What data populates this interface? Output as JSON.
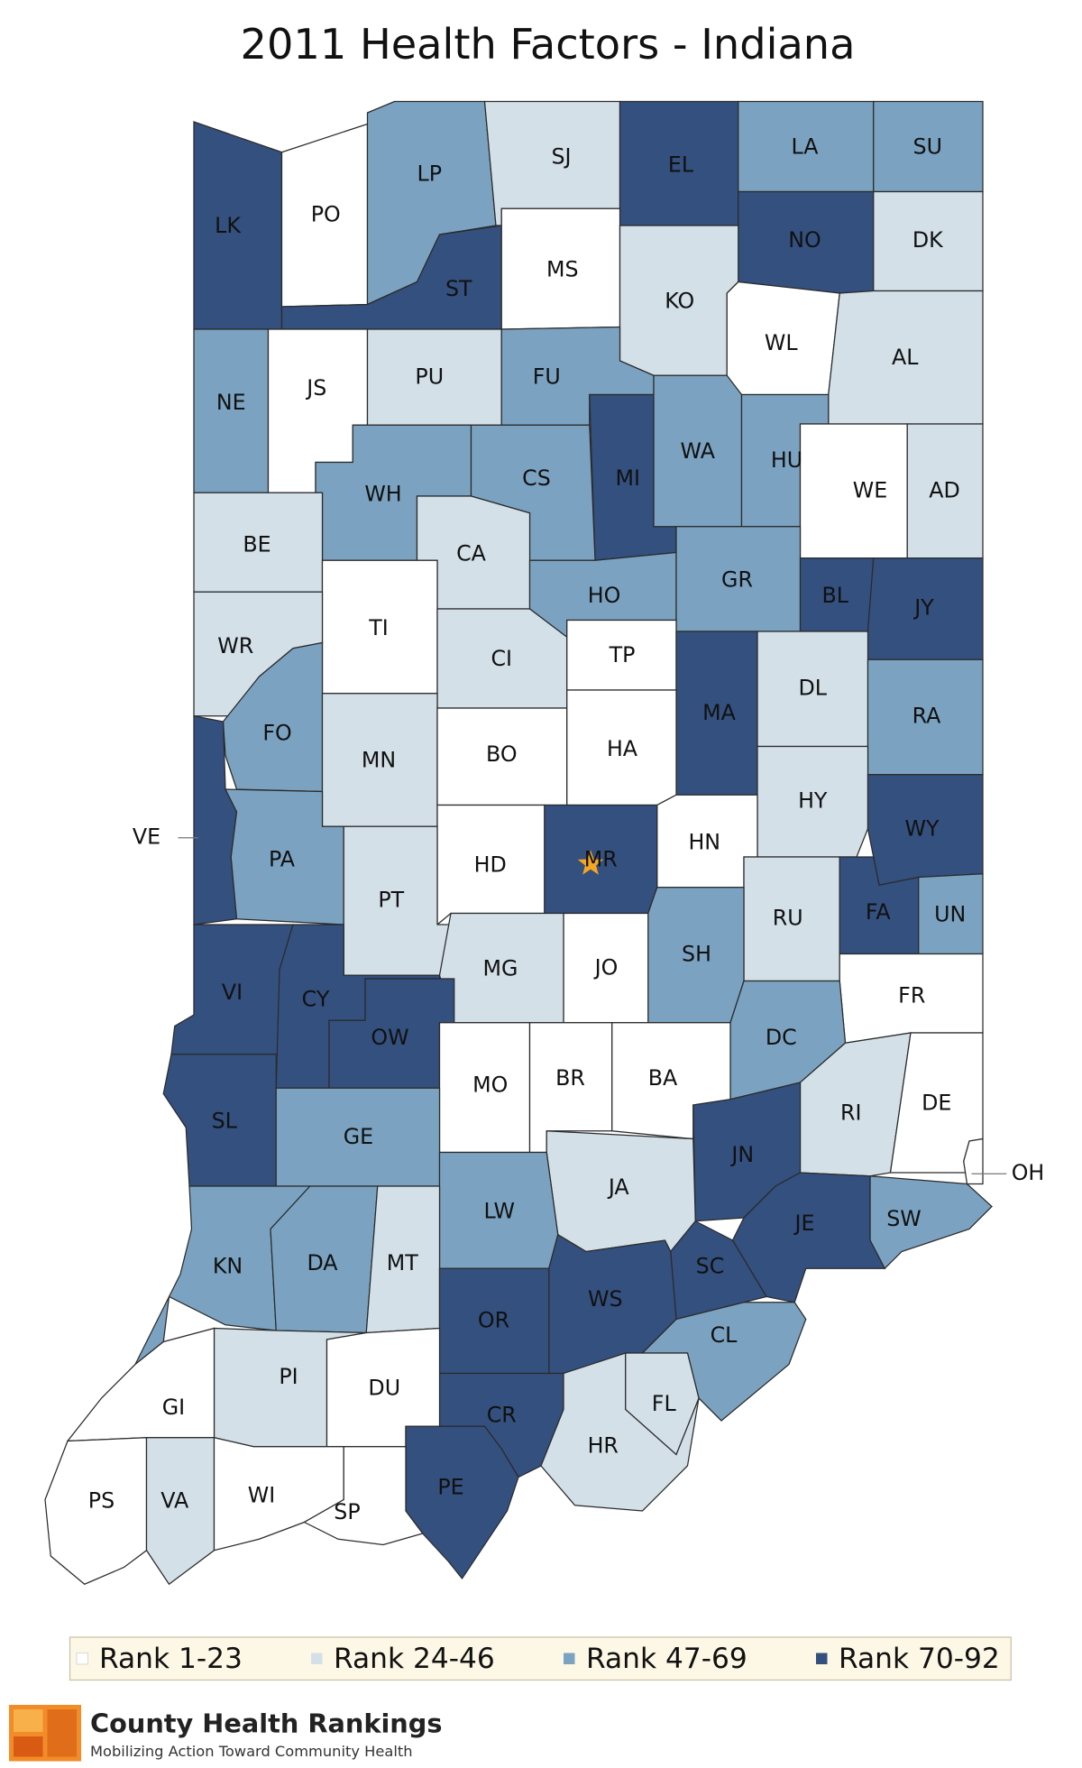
{
  "title": "2011 Health Factors - Indiana",
  "legend": {
    "items": [
      {
        "label": "Rank 1-23",
        "color": "#ffffff"
      },
      {
        "label": "Rank 24-46",
        "color": "#d3e0e8"
      },
      {
        "label": "Rank 47-69",
        "color": "#7ba3c1"
      },
      {
        "label": "Rank 70-92",
        "color": "#34507f"
      }
    ]
  },
  "counties": [
    {
      "abbr": "LK",
      "group": 3
    },
    {
      "abbr": "PO",
      "group": 0
    },
    {
      "abbr": "LP",
      "group": 2
    },
    {
      "abbr": "SJ",
      "group": 1
    },
    {
      "abbr": "EL",
      "group": 3
    },
    {
      "abbr": "LA",
      "group": 2
    },
    {
      "abbr": "SU",
      "group": 2
    },
    {
      "abbr": "ST",
      "group": 3
    },
    {
      "abbr": "MS",
      "group": 0
    },
    {
      "abbr": "NO",
      "group": 3
    },
    {
      "abbr": "DK",
      "group": 1
    },
    {
      "abbr": "KO",
      "group": 1
    },
    {
      "abbr": "WL",
      "group": 0
    },
    {
      "abbr": "AL",
      "group": 1
    },
    {
      "abbr": "NE",
      "group": 2
    },
    {
      "abbr": "JS",
      "group": 0
    },
    {
      "abbr": "PU",
      "group": 1
    },
    {
      "abbr": "FU",
      "group": 2
    },
    {
      "abbr": "MI",
      "group": 3
    },
    {
      "abbr": "WA",
      "group": 2
    },
    {
      "abbr": "HU",
      "group": 2
    },
    {
      "abbr": "WE",
      "group": 0
    },
    {
      "abbr": "AD",
      "group": 1
    },
    {
      "abbr": "WH",
      "group": 2
    },
    {
      "abbr": "CS",
      "group": 2
    },
    {
      "abbr": "CA",
      "group": 1
    },
    {
      "abbr": "BE",
      "group": 1
    },
    {
      "abbr": "HO",
      "group": 2
    },
    {
      "abbr": "GR",
      "group": 2
    },
    {
      "abbr": "BL",
      "group": 3
    },
    {
      "abbr": "JY",
      "group": 3
    },
    {
      "abbr": "TI",
      "group": 0
    },
    {
      "abbr": "WR",
      "group": 1
    },
    {
      "abbr": "CI",
      "group": 1
    },
    {
      "abbr": "TP",
      "group": 0
    },
    {
      "abbr": "MA",
      "group": 3
    },
    {
      "abbr": "DL",
      "group": 1
    },
    {
      "abbr": "RA",
      "group": 2
    },
    {
      "abbr": "FO",
      "group": 2
    },
    {
      "abbr": "MN",
      "group": 1
    },
    {
      "abbr": "BO",
      "group": 0
    },
    {
      "abbr": "HA",
      "group": 0
    },
    {
      "abbr": "HY",
      "group": 1
    },
    {
      "abbr": "HN",
      "group": 0
    },
    {
      "abbr": "MR",
      "group": 3
    },
    {
      "abbr": "HD",
      "group": 0
    },
    {
      "abbr": "WY",
      "group": 3
    },
    {
      "abbr": "VE",
      "group": 3
    },
    {
      "abbr": "PA",
      "group": 2
    },
    {
      "abbr": "PT",
      "group": 1
    },
    {
      "abbr": "RU",
      "group": 1
    },
    {
      "abbr": "FA",
      "group": 3
    },
    {
      "abbr": "UN",
      "group": 2
    },
    {
      "abbr": "SH",
      "group": 2
    },
    {
      "abbr": "JO",
      "group": 0
    },
    {
      "abbr": "MG",
      "group": 1
    },
    {
      "abbr": "FR",
      "group": 0
    },
    {
      "abbr": "VI",
      "group": 3
    },
    {
      "abbr": "CY",
      "group": 3
    },
    {
      "abbr": "OW",
      "group": 3
    },
    {
      "abbr": "DC",
      "group": 2
    },
    {
      "abbr": "MO",
      "group": 0
    },
    {
      "abbr": "BR",
      "group": 0
    },
    {
      "abbr": "BA",
      "group": 0
    },
    {
      "abbr": "RI",
      "group": 1
    },
    {
      "abbr": "DE",
      "group": 0
    },
    {
      "abbr": "SL",
      "group": 3
    },
    {
      "abbr": "GE",
      "group": 2
    },
    {
      "abbr": "JN",
      "group": 3
    },
    {
      "abbr": "JA",
      "group": 1
    },
    {
      "abbr": "LW",
      "group": 2
    },
    {
      "abbr": "SW",
      "group": 2
    },
    {
      "abbr": "JE",
      "group": 3
    },
    {
      "abbr": "KN",
      "group": 2
    },
    {
      "abbr": "DA",
      "group": 2
    },
    {
      "abbr": "MT",
      "group": 1
    },
    {
      "abbr": "SC",
      "group": 3
    },
    {
      "abbr": "WS",
      "group": 3
    },
    {
      "abbr": "OR",
      "group": 3
    },
    {
      "abbr": "CL",
      "group": 2
    },
    {
      "abbr": "CR",
      "group": 3
    },
    {
      "abbr": "PI",
      "group": 1
    },
    {
      "abbr": "DU",
      "group": 0
    },
    {
      "abbr": "GI",
      "group": 0
    },
    {
      "abbr": "HR",
      "group": 1
    },
    {
      "abbr": "FL",
      "group": 1
    },
    {
      "abbr": "PE",
      "group": 3
    },
    {
      "abbr": "PS",
      "group": 0
    },
    {
      "abbr": "VA",
      "group": 1
    },
    {
      "abbr": "WI",
      "group": 0
    },
    {
      "abbr": "SP",
      "group": 0
    },
    {
      "abbr": "OH",
      "group": 0
    }
  ],
  "footer": {
    "name": "County Health Rankings",
    "tagline": "Mobilizing Action Toward Community Health"
  }
}
